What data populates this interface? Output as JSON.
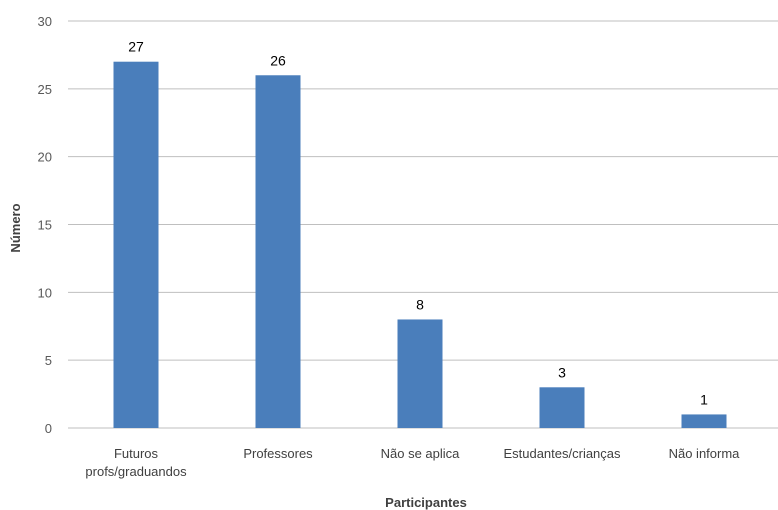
{
  "chart_data": {
    "type": "bar",
    "title": "",
    "xlabel": "Participantes",
    "ylabel": "Número",
    "categories": [
      [
        "Futuros",
        "profs/graduandos"
      ],
      [
        "Professores"
      ],
      [
        "Não se aplica"
      ],
      [
        "Estudantes/crianças"
      ],
      [
        "Não informa"
      ]
    ],
    "values": [
      27,
      26,
      8,
      3,
      1
    ],
    "data_labels": [
      "27",
      "26",
      "8",
      "3",
      "1"
    ],
    "ylim": [
      0,
      30
    ],
    "yticks": [
      "0",
      "5",
      "10",
      "15",
      "20",
      "25",
      "30"
    ],
    "grid": true,
    "legend": "none",
    "bar_color": "#4a7ebb",
    "grid_color": "#bfbfbf"
  }
}
